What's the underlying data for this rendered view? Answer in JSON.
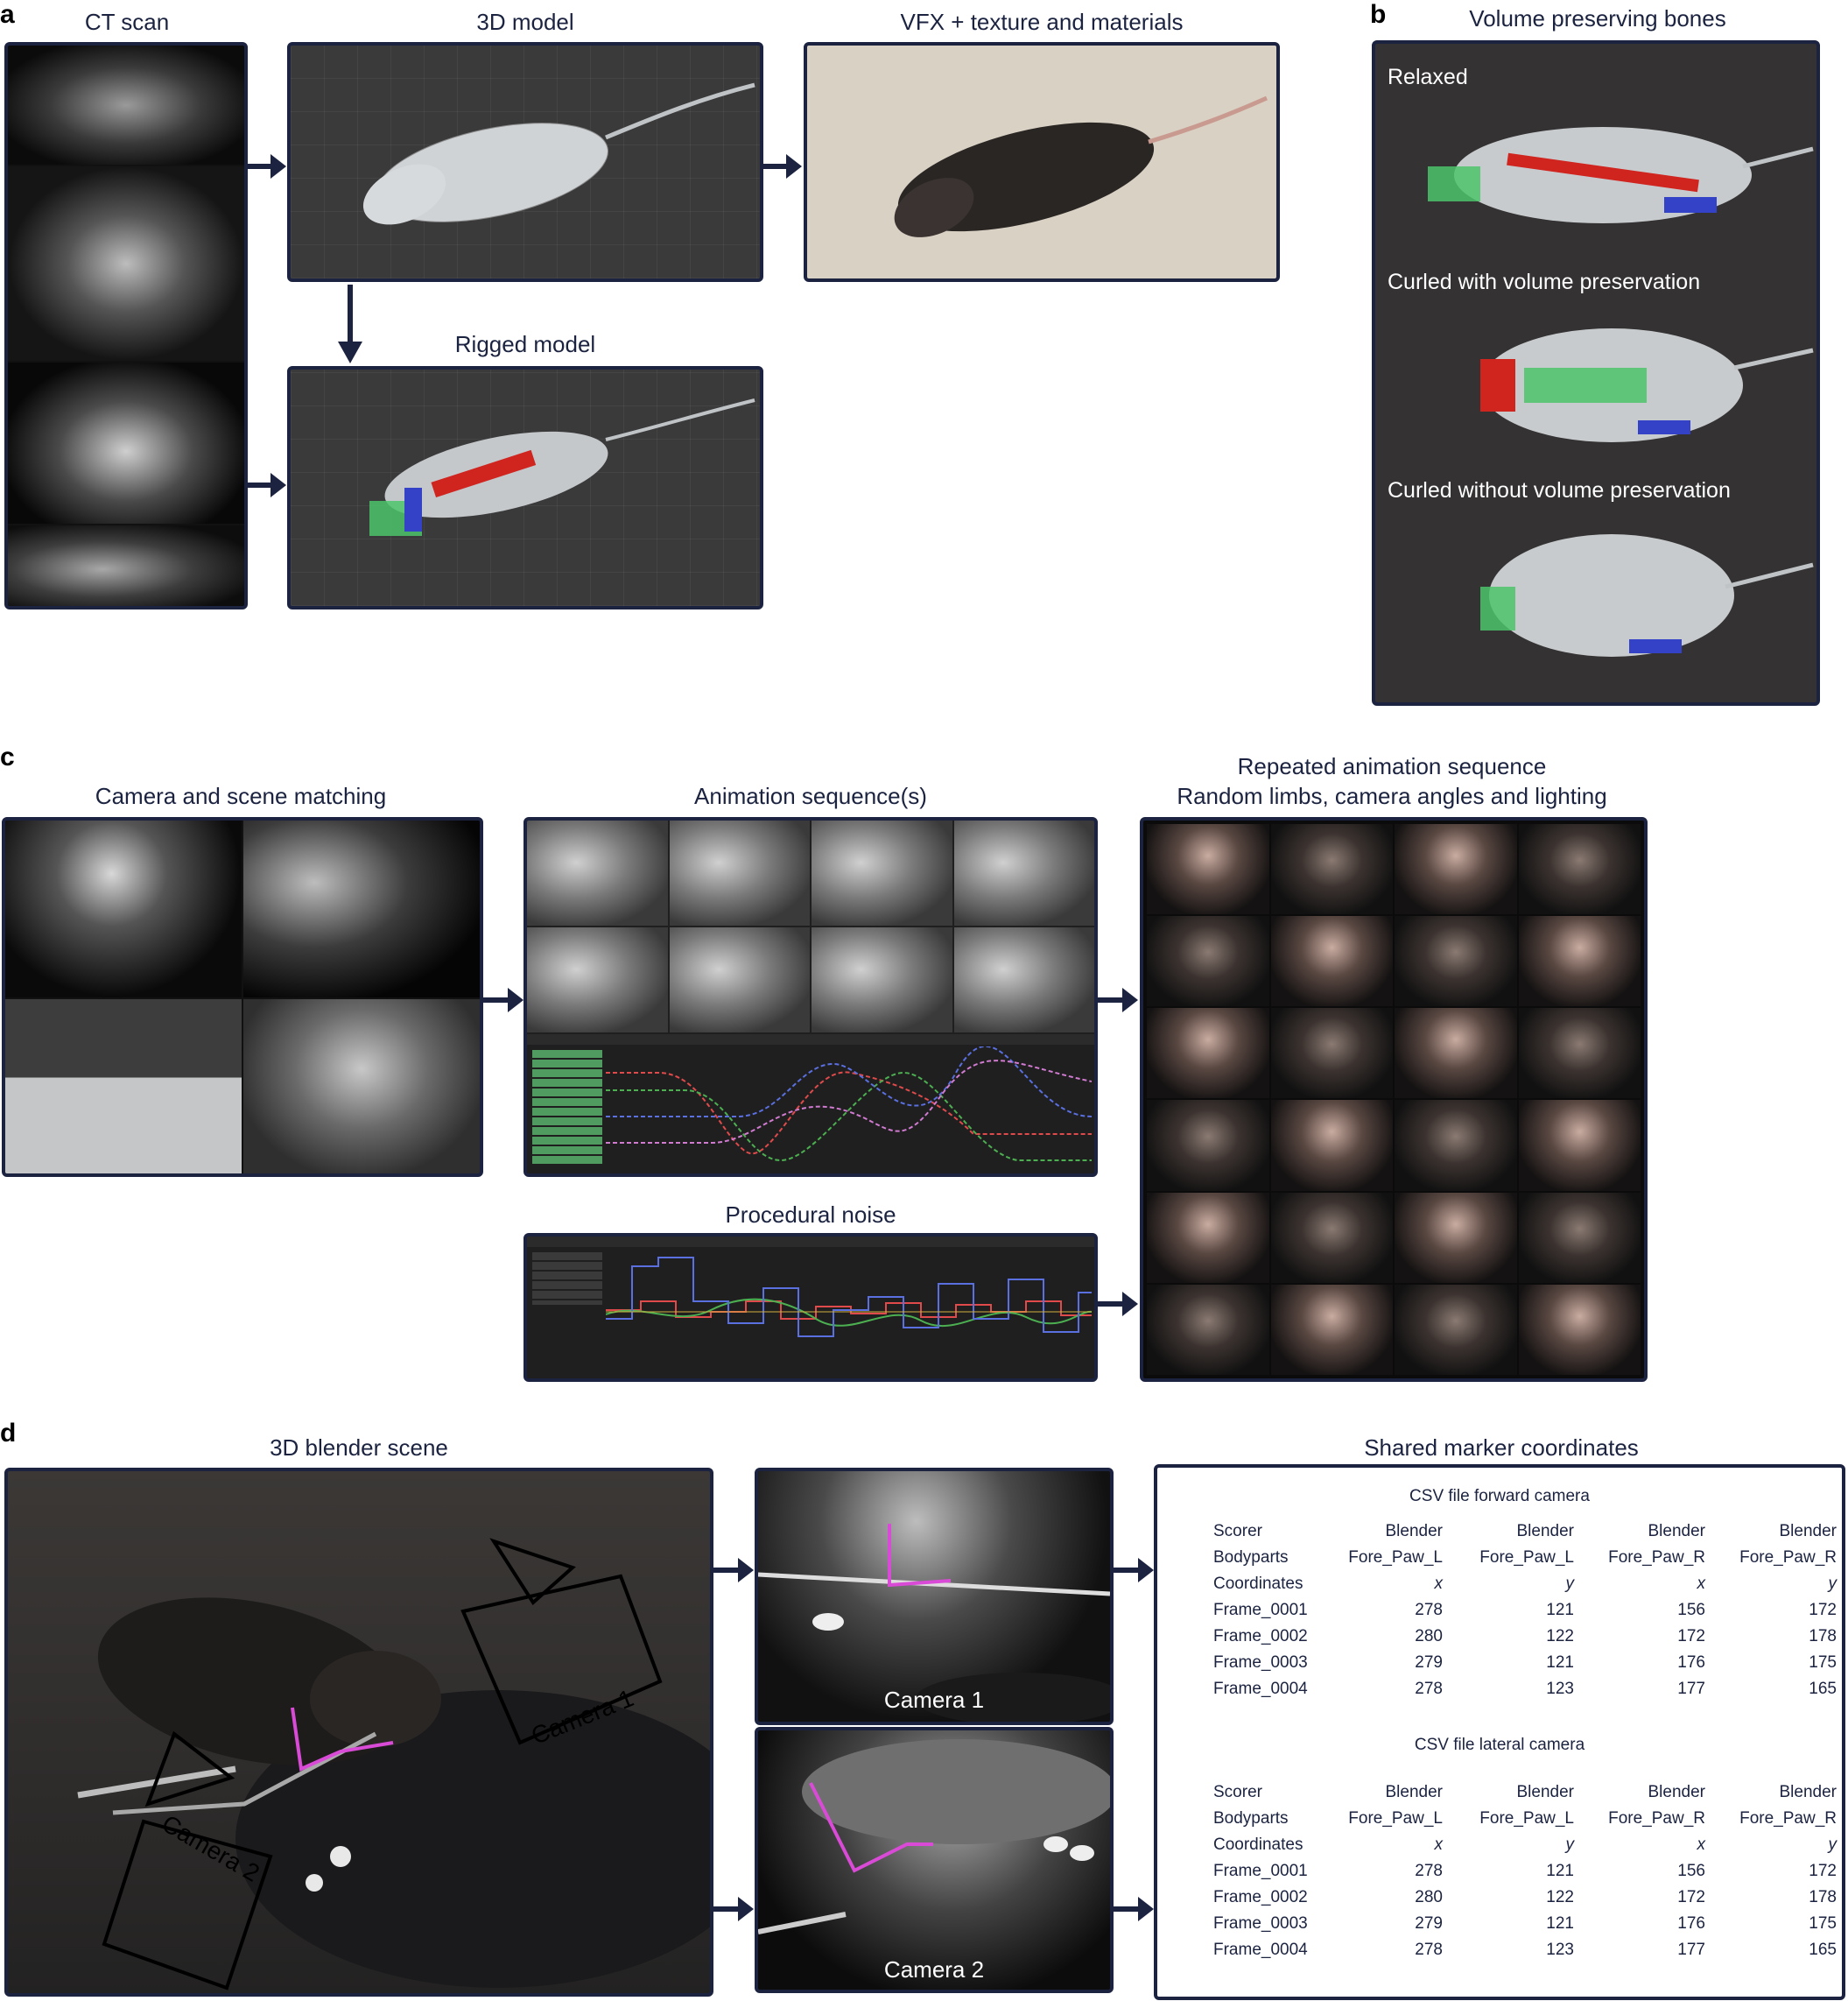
{
  "panel_labels": {
    "a": "a",
    "b": "b",
    "c": "c",
    "d": "d"
  },
  "a": {
    "ct_title": "CT scan",
    "model_title": "3D model",
    "vfx_title": "VFX + texture and materials",
    "rigged_title": "Rigged model"
  },
  "b": {
    "title": "Volume preserving bones",
    "relaxed": "Relaxed",
    "curled_with": "Curled with volume preservation",
    "curled_without": "Curled without volume preservation"
  },
  "c": {
    "camera_title": "Camera and scene matching",
    "anim_title": "Animation sequence(s)",
    "noise_title": "Procedural noise",
    "repeated_title_1": "Repeated animation sequence",
    "repeated_title_2": "Random limbs, camera angles and lighting"
  },
  "d": {
    "scene_title": "3D blender scene",
    "markers_title": "Shared marker coordinates",
    "camera1": "Camera 1",
    "camera2": "Camera 2",
    "camera1_frame": "Camera 1",
    "camera2_frame": "Camera 2",
    "tables": [
      {
        "title": "CSV file forward camera",
        "header": {
          "scorer": [
            "Scorer",
            "Blender",
            "Blender",
            "Blender",
            "Blender"
          ],
          "bodyparts": [
            "Bodyparts",
            "Fore_Paw_L",
            "Fore_Paw_L",
            "Fore_Paw_R",
            "Fore_Paw_R"
          ],
          "coords": [
            "Coordinates",
            "x",
            "y",
            "x",
            "y"
          ]
        },
        "rows": [
          [
            "Frame_0001",
            "278",
            "121",
            "156",
            "172"
          ],
          [
            "Frame_0002",
            "280",
            "122",
            "172",
            "178"
          ],
          [
            "Frame_0003",
            "279",
            "121",
            "176",
            "175"
          ],
          [
            "Frame_0004",
            "278",
            "123",
            "177",
            "165"
          ]
        ]
      },
      {
        "title": "CSV file lateral camera",
        "header": {
          "scorer": [
            "Scorer",
            "Blender",
            "Blender",
            "Blender",
            "Blender"
          ],
          "bodyparts": [
            "Bodyparts",
            "Fore_Paw_L",
            "Fore_Paw_L",
            "Fore_Paw_R",
            "Fore_Paw_R"
          ],
          "coords": [
            "Coordinates",
            "x",
            "y",
            "x",
            "y"
          ]
        },
        "rows": [
          [
            "Frame_0001",
            "278",
            "121",
            "156",
            "172"
          ],
          [
            "Frame_0002",
            "280",
            "122",
            "172",
            "178"
          ],
          [
            "Frame_0003",
            "279",
            "121",
            "176",
            "175"
          ],
          [
            "Frame_0004",
            "278",
            "123",
            "177",
            "165"
          ]
        ]
      }
    ]
  },
  "colors": {
    "frame": "#1b2340",
    "bone_red": "#d0241f",
    "bone_green": "#4cc46a",
    "bone_blue": "#3442c8",
    "skeleton_magenta": "#d94bd6"
  }
}
